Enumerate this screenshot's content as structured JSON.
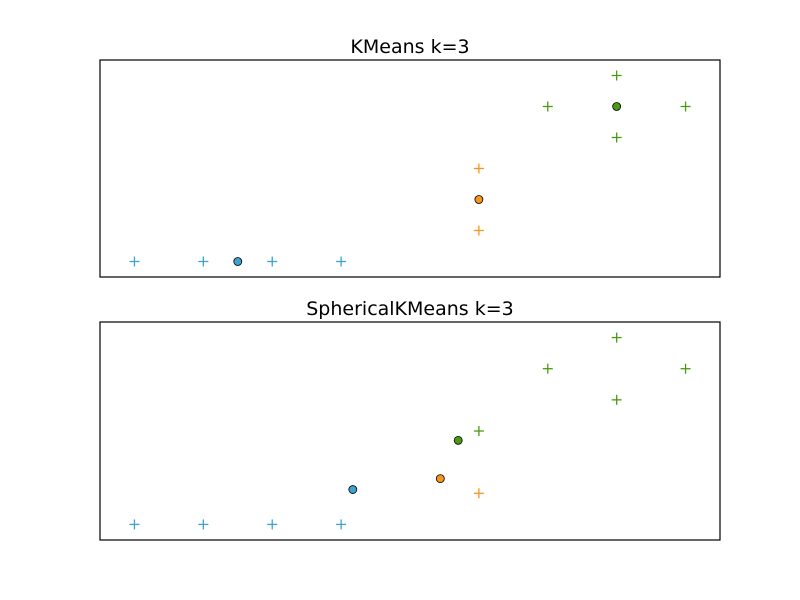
{
  "colors": {
    "blue": "#3ba3ce",
    "orange": "#f7941d",
    "green": "#4a9a12"
  },
  "chart_data": [
    {
      "type": "scatter",
      "title": "KMeans k=3",
      "xlim": [
        0,
        9
      ],
      "ylim": [
        0,
        7
      ],
      "grid": false,
      "points": [
        {
          "x": 0.5,
          "y": 0.5,
          "cluster": "blue"
        },
        {
          "x": 1.5,
          "y": 0.5,
          "cluster": "blue"
        },
        {
          "x": 2.5,
          "y": 0.5,
          "cluster": "blue"
        },
        {
          "x": 3.5,
          "y": 0.5,
          "cluster": "blue"
        },
        {
          "x": 5.5,
          "y": 1.5,
          "cluster": "orange"
        },
        {
          "x": 5.5,
          "y": 3.5,
          "cluster": "orange"
        },
        {
          "x": 7.5,
          "y": 4.5,
          "cluster": "green"
        },
        {
          "x": 6.5,
          "y": 5.5,
          "cluster": "green"
        },
        {
          "x": 8.5,
          "y": 5.5,
          "cluster": "green"
        },
        {
          "x": 7.5,
          "y": 6.5,
          "cluster": "green"
        }
      ],
      "centroids": [
        {
          "x": 2.0,
          "y": 0.5,
          "cluster": "blue"
        },
        {
          "x": 5.5,
          "y": 2.5,
          "cluster": "orange"
        },
        {
          "x": 7.5,
          "y": 5.5,
          "cluster": "green"
        }
      ]
    },
    {
      "type": "scatter",
      "title": "SphericalKMeans k=3",
      "xlim": [
        0,
        9
      ],
      "ylim": [
        0,
        7
      ],
      "grid": false,
      "points": [
        {
          "x": 0.5,
          "y": 0.5,
          "cluster": "blue"
        },
        {
          "x": 1.5,
          "y": 0.5,
          "cluster": "blue"
        },
        {
          "x": 2.5,
          "y": 0.5,
          "cluster": "blue"
        },
        {
          "x": 3.5,
          "y": 0.5,
          "cluster": "blue"
        },
        {
          "x": 5.5,
          "y": 1.5,
          "cluster": "orange"
        },
        {
          "x": 5.5,
          "y": 3.5,
          "cluster": "green"
        },
        {
          "x": 7.5,
          "y": 4.5,
          "cluster": "green"
        },
        {
          "x": 6.5,
          "y": 5.5,
          "cluster": "green"
        },
        {
          "x": 8.5,
          "y": 5.5,
          "cluster": "green"
        },
        {
          "x": 7.5,
          "y": 6.5,
          "cluster": "green"
        }
      ],
      "centroids": [
        {
          "x": 3.67,
          "y": 1.62,
          "cluster": "blue"
        },
        {
          "x": 4.94,
          "y": 1.97,
          "cluster": "orange"
        },
        {
          "x": 5.2,
          "y": 3.2,
          "cluster": "green"
        }
      ]
    }
  ]
}
